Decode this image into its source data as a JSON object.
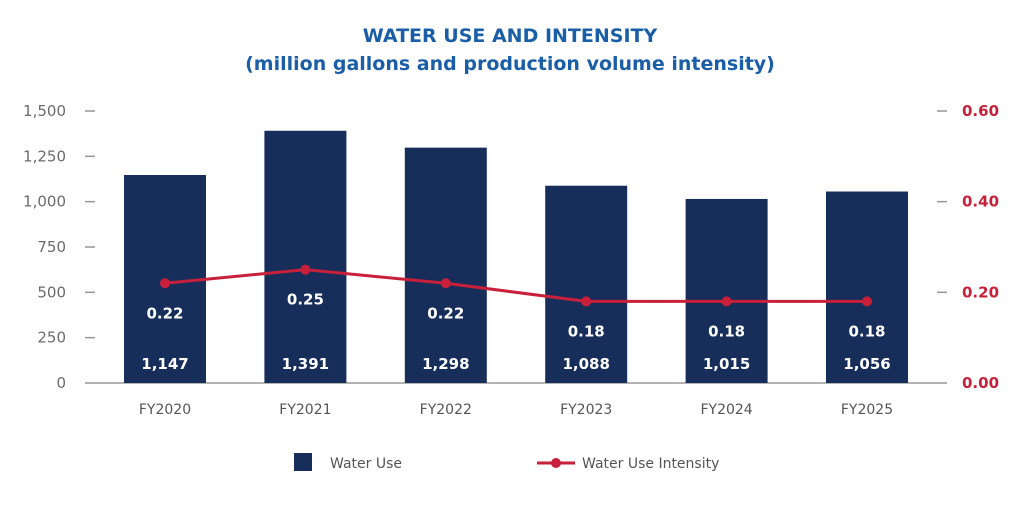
{
  "chart_data": {
    "type": "bar",
    "title": "WATER USE AND INTENSITY",
    "subtitle": "(million gallons and production volume intensity)",
    "categories": [
      "FY2020",
      "FY2021",
      "FY2022",
      "FY2023",
      "FY2024",
      "FY2025"
    ],
    "series": [
      {
        "name": "Water Use",
        "type": "bar",
        "axis": "left",
        "color": "#172d5a",
        "values": [
          1147,
          1391,
          1298,
          1088,
          1015,
          1056
        ],
        "labels": [
          "1,147",
          "1,391",
          "1,298",
          "1,088",
          "1,015",
          "1,056"
        ]
      },
      {
        "name": "Water Use Intensity",
        "type": "line",
        "axis": "right",
        "color": "#c8203a",
        "values": [
          0.22,
          0.25,
          0.22,
          0.18,
          0.18,
          0.18
        ],
        "labels": [
          "0.22",
          "0.25",
          "0.22",
          "0.18",
          "0.18",
          "0.18"
        ]
      }
    ],
    "y_left": {
      "ylim": [
        0,
        1500
      ],
      "ticks": [
        0,
        250,
        500,
        750,
        1000,
        1250,
        1500
      ],
      "tick_labels": [
        "0",
        "250",
        "500",
        "750",
        "1,000",
        "1,250",
        "1,500"
      ]
    },
    "y_right": {
      "ylim": [
        0,
        0.6
      ],
      "ticks": [
        0,
        0.2,
        0.4,
        0.6
      ],
      "tick_labels": [
        "0.00",
        "0.20",
        "0.40",
        "0.60"
      ]
    },
    "legend": "bottom",
    "grid": false
  }
}
